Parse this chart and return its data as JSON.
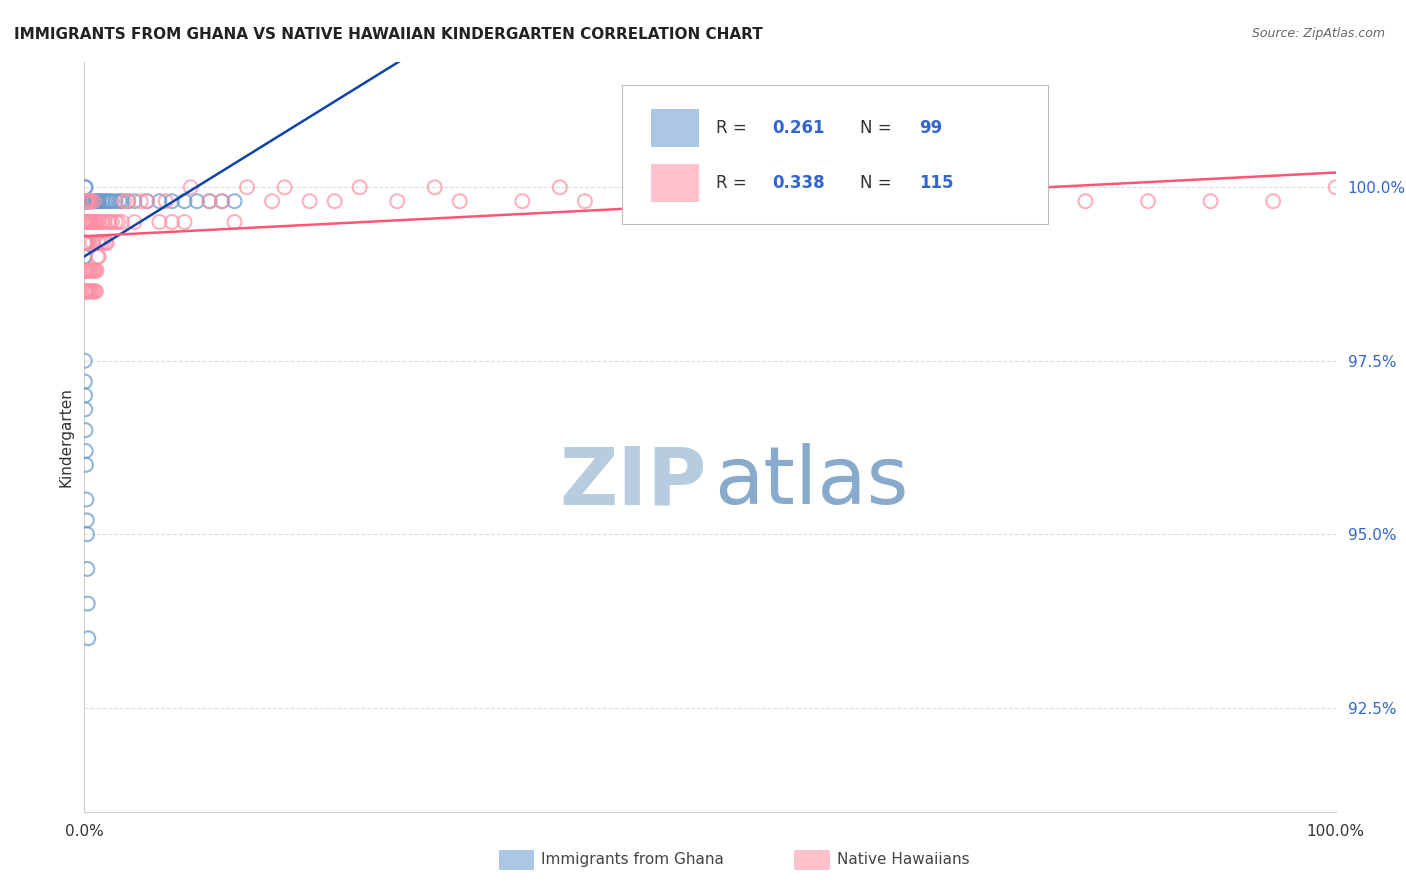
{
  "title": "IMMIGRANTS FROM GHANA VS NATIVE HAWAIIAN KINDERGARTEN CORRELATION CHART",
  "source": "Source: ZipAtlas.com",
  "ylabel": "Kindergarten",
  "ytick_values": [
    92.5,
    95.0,
    97.5,
    100.0
  ],
  "xlim": [
    0.0,
    100.0
  ],
  "ylim": [
    91.0,
    101.8
  ],
  "color_ghana": "#6699CC",
  "color_hawaii": "#FF8FA3",
  "trend_color_ghana": "#1144AA",
  "trend_color_hawaii": "#FF5577",
  "watermark_zip_color": "#B8CCE0",
  "watermark_atlas_color": "#88AACC",
  "legend_r1": "0.261",
  "legend_n1": "99",
  "legend_r2": "0.338",
  "legend_n2": "115",
  "legend_color": "#3366CC",
  "ghana_x": [
    0.0,
    0.0,
    0.0,
    0.0,
    0.0,
    0.01,
    0.01,
    0.01,
    0.02,
    0.02,
    0.02,
    0.02,
    0.03,
    0.03,
    0.03,
    0.04,
    0.04,
    0.05,
    0.05,
    0.05,
    0.06,
    0.06,
    0.07,
    0.07,
    0.08,
    0.08,
    0.09,
    0.09,
    0.1,
    0.1,
    0.1,
    0.12,
    0.12,
    0.13,
    0.14,
    0.15,
    0.15,
    0.16,
    0.17,
    0.18,
    0.2,
    0.2,
    0.22,
    0.22,
    0.25,
    0.25,
    0.28,
    0.3,
    0.3,
    0.32,
    0.35,
    0.35,
    0.38,
    0.4,
    0.42,
    0.45,
    0.48,
    0.5,
    0.55,
    0.6,
    0.65,
    0.7,
    0.8,
    0.9,
    1.0,
    1.1,
    1.2,
    1.4,
    1.6,
    1.8,
    2.0,
    2.2,
    2.5,
    2.8,
    3.0,
    3.5,
    4.0,
    5.0,
    6.0,
    7.0,
    8.0,
    9.0,
    10.0,
    11.0,
    12.0,
    0.03,
    0.04,
    0.06,
    0.07,
    0.09,
    0.11,
    0.13,
    0.16,
    0.19,
    0.21,
    0.24,
    0.27,
    0.31
  ],
  "ghana_y": [
    99.8,
    99.5,
    99.2,
    99.0,
    98.8,
    99.8,
    99.5,
    99.2,
    99.8,
    99.5,
    99.0,
    98.5,
    99.8,
    99.5,
    99.2,
    99.8,
    99.5,
    100.0,
    99.8,
    99.5,
    99.8,
    99.5,
    99.8,
    99.2,
    99.8,
    99.5,
    99.8,
    99.2,
    100.0,
    99.8,
    99.5,
    99.8,
    99.5,
    99.8,
    99.5,
    99.8,
    99.5,
    99.8,
    99.5,
    99.2,
    99.8,
    99.5,
    99.8,
    99.5,
    99.8,
    99.5,
    99.5,
    99.8,
    99.5,
    99.8,
    99.8,
    99.5,
    99.8,
    99.5,
    99.8,
    99.8,
    99.8,
    99.8,
    99.8,
    99.8,
    99.8,
    99.8,
    99.8,
    99.8,
    99.8,
    99.8,
    99.8,
    99.8,
    99.8,
    99.8,
    99.8,
    99.8,
    99.8,
    99.8,
    99.8,
    99.8,
    99.8,
    99.8,
    99.8,
    99.8,
    99.8,
    99.8,
    99.8,
    99.8,
    99.8,
    97.5,
    97.2,
    97.0,
    96.8,
    96.5,
    96.2,
    96.0,
    95.5,
    95.2,
    95.0,
    94.5,
    94.0,
    93.5
  ],
  "hawaii_x": [
    0.0,
    0.0,
    0.01,
    0.02,
    0.03,
    0.04,
    0.05,
    0.06,
    0.07,
    0.08,
    0.09,
    0.1,
    0.12,
    0.14,
    0.15,
    0.16,
    0.18,
    0.2,
    0.22,
    0.25,
    0.28,
    0.3,
    0.32,
    0.35,
    0.38,
    0.4,
    0.42,
    0.45,
    0.5,
    0.55,
    0.6,
    0.65,
    0.7,
    0.75,
    0.8,
    0.9,
    1.0,
    1.1,
    1.2,
    1.4,
    1.6,
    1.8,
    2.0,
    2.5,
    3.0,
    3.5,
    4.0,
    5.0,
    6.0,
    7.0,
    8.0,
    10.0,
    12.0,
    15.0,
    18.0,
    20.0,
    25.0,
    30.0,
    35.0,
    40.0,
    45.0,
    50.0,
    55.0,
    60.0,
    65.0,
    70.0,
    75.0,
    80.0,
    85.0,
    90.0,
    95.0,
    100.0,
    0.05,
    0.08,
    0.11,
    0.13,
    0.17,
    0.19,
    0.23,
    0.26,
    0.29,
    0.33,
    0.36,
    0.39,
    0.43,
    0.47,
    0.52,
    0.58,
    0.63,
    0.68,
    0.73,
    0.78,
    0.83,
    0.88,
    0.93,
    0.98,
    1.05,
    1.15,
    1.3,
    1.5,
    1.7,
    1.9,
    2.2,
    2.7,
    3.2,
    4.5,
    6.5,
    8.5,
    11.0,
    13.0,
    16.0,
    22.0,
    28.0,
    38.0,
    48.0,
    58.0,
    68.0
  ],
  "hawaii_y": [
    99.5,
    99.2,
    99.5,
    99.2,
    99.5,
    99.8,
    99.5,
    99.2,
    99.5,
    99.8,
    99.5,
    99.2,
    99.5,
    99.8,
    99.5,
    99.2,
    99.5,
    99.8,
    99.5,
    99.5,
    99.2,
    99.5,
    99.8,
    99.5,
    99.2,
    99.5,
    99.8,
    99.5,
    99.5,
    99.8,
    99.5,
    99.2,
    99.5,
    99.8,
    99.5,
    99.5,
    99.5,
    99.2,
    99.5,
    99.5,
    99.5,
    99.2,
    99.5,
    99.5,
    99.5,
    99.8,
    99.5,
    99.8,
    99.5,
    99.5,
    99.5,
    99.8,
    99.5,
    99.8,
    99.8,
    99.8,
    99.8,
    99.8,
    99.8,
    99.8,
    99.8,
    99.8,
    99.8,
    99.8,
    99.8,
    99.8,
    99.8,
    99.8,
    99.8,
    99.8,
    99.8,
    100.0,
    98.5,
    98.8,
    98.5,
    98.8,
    98.5,
    98.8,
    98.5,
    98.8,
    98.5,
    98.8,
    98.5,
    98.8,
    98.5,
    98.8,
    98.5,
    98.8,
    98.5,
    98.8,
    98.5,
    98.8,
    98.5,
    98.8,
    98.5,
    98.8,
    99.0,
    99.0,
    99.2,
    99.2,
    99.2,
    99.5,
    99.5,
    99.5,
    99.8,
    99.8,
    99.8,
    100.0,
    99.8,
    100.0,
    100.0,
    100.0,
    100.0,
    100.0,
    100.0,
    100.0,
    100.0
  ]
}
